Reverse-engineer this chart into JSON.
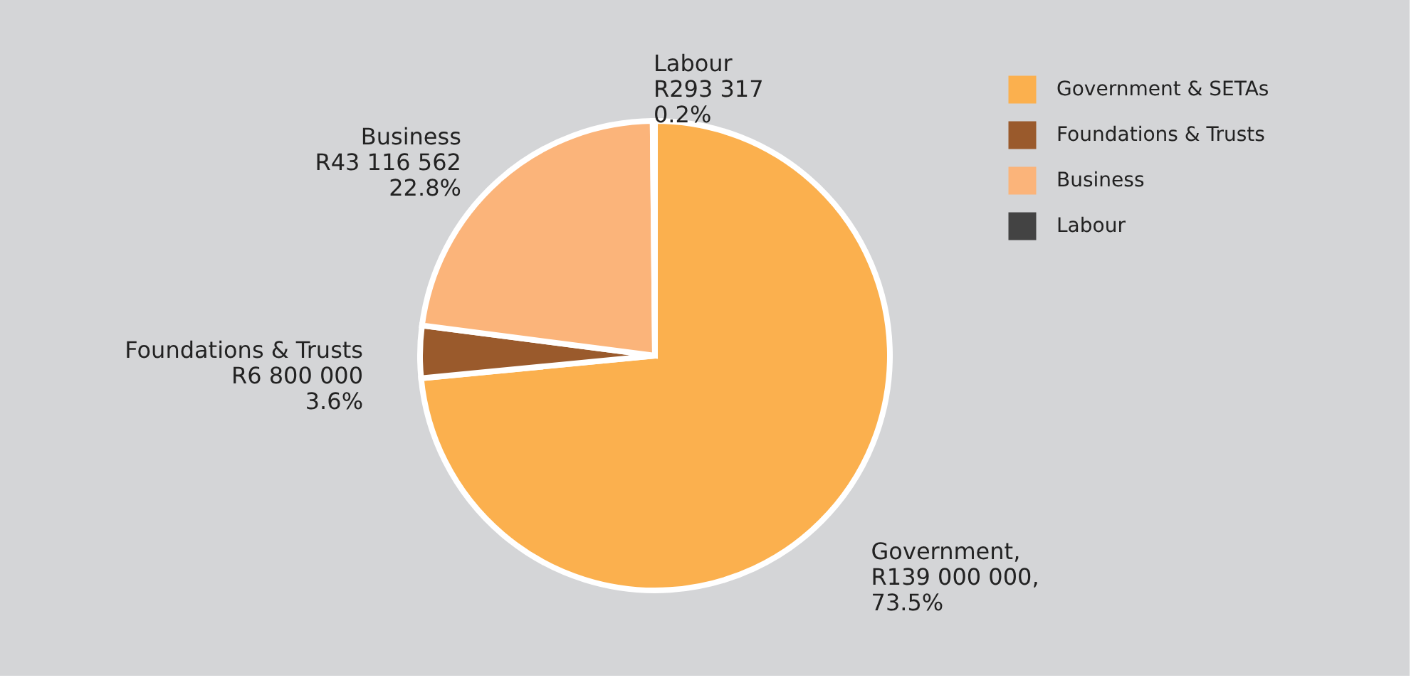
{
  "chart_data": {
    "type": "pie",
    "categories": [
      "Government & SETAs",
      "Foundations & Trusts",
      "Business",
      "Labour"
    ],
    "values": [
      139000000,
      6800000,
      43116562,
      293317
    ],
    "colors": [
      "#fbb04e",
      "#9a5a2c",
      "#fbb47a",
      "#434343"
    ],
    "value_labels": [
      "Government,\nR139 000 000,\n73.5%",
      "Foundations & Trusts\nR6 800 000\n3.6%",
      "Business\nR43 116 562\n22.8%",
      "Labour\nR293 317\n0.2%"
    ],
    "legend": "top right"
  }
}
